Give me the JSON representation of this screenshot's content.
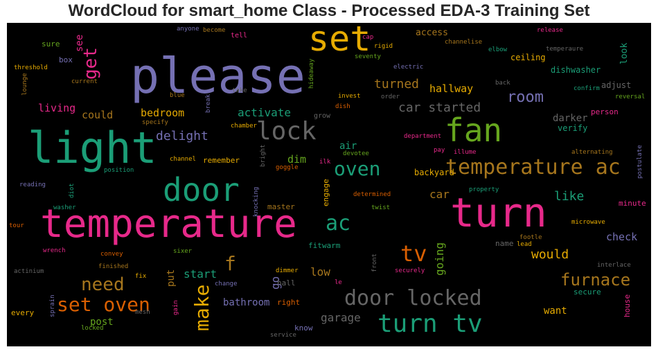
{
  "chart_data": {
    "type": "wordcloud",
    "title": "WordCloud for smart_home Class - Processed EDA-3 Training Set",
    "background": "#000000",
    "colormap": "Dark2",
    "words": [
      {
        "text": "please",
        "size": 70,
        "color": "#7570b3"
      },
      {
        "text": "light",
        "size": 62,
        "color": "#1b9e77"
      },
      {
        "text": "temperature",
        "size": 56,
        "color": "#e7298a"
      },
      {
        "text": "turn",
        "size": 58,
        "color": "#e7298a"
      },
      {
        "text": "set",
        "size": 50,
        "color": "#e6ab02"
      },
      {
        "text": "fan",
        "size": 46,
        "color": "#66a61e"
      },
      {
        "text": "door",
        "size": 46,
        "color": "#1b9e77"
      },
      {
        "text": "lock",
        "size": 36,
        "color": "#666666"
      },
      {
        "text": "temperature ac",
        "size": 30,
        "color": "#a6761d"
      },
      {
        "text": "turn tv",
        "size": 36,
        "color": "#1b9e77"
      },
      {
        "text": "door locked",
        "size": 30,
        "color": "#666666"
      },
      {
        "text": "set oven",
        "size": 28,
        "color": "#d95f02"
      },
      {
        "text": "oven",
        "size": 28,
        "color": "#1b9e77"
      },
      {
        "text": "ac",
        "size": 30,
        "color": "#1b9e77"
      },
      {
        "text": "tv",
        "size": 32,
        "color": "#d95f02"
      },
      {
        "text": "need",
        "size": 26,
        "color": "#a6761d"
      },
      {
        "text": "make",
        "size": 28,
        "color": "#e6ab02"
      },
      {
        "text": "furnace",
        "size": 24,
        "color": "#a6761d"
      },
      {
        "text": "get",
        "size": 26,
        "color": "#e7298a"
      },
      {
        "text": "room",
        "size": 22,
        "color": "#7570b3"
      },
      {
        "text": "f",
        "size": 28,
        "color": "#a6761d"
      },
      {
        "text": "like",
        "size": 18,
        "color": "#1b9e77"
      },
      {
        "text": "would",
        "size": 18,
        "color": "#e6ab02"
      },
      {
        "text": "turned",
        "size": 18,
        "color": "#a6761d"
      },
      {
        "text": "delight",
        "size": 18,
        "color": "#7570b3"
      },
      {
        "text": "car started",
        "size": 18,
        "color": "#666666"
      },
      {
        "text": "activate",
        "size": 16,
        "color": "#1b9e77"
      },
      {
        "text": "bedroom",
        "size": 15,
        "color": "#e6ab02"
      },
      {
        "text": "car",
        "size": 16,
        "color": "#a6761d"
      },
      {
        "text": "start",
        "size": 16,
        "color": "#1b9e77"
      },
      {
        "text": "going",
        "size": 16,
        "color": "#66a61e"
      },
      {
        "text": "low",
        "size": 16,
        "color": "#a6761d"
      },
      {
        "text": "check",
        "size": 15,
        "color": "#7570b3"
      },
      {
        "text": "garage",
        "size": 16,
        "color": "#666666"
      },
      {
        "text": "could",
        "size": 15,
        "color": "#a6761d"
      },
      {
        "text": "living",
        "size": 15,
        "color": "#e7298a"
      },
      {
        "text": "hallway",
        "size": 15,
        "color": "#e6ab02"
      },
      {
        "text": "bathroom",
        "size": 14,
        "color": "#7570b3"
      },
      {
        "text": "post",
        "size": 14,
        "color": "#66a61e"
      },
      {
        "text": "darker",
        "size": 14,
        "color": "#666666"
      },
      {
        "text": "dim",
        "size": 15,
        "color": "#66a61e"
      },
      {
        "text": "air",
        "size": 14,
        "color": "#1b9e77"
      },
      {
        "text": "put",
        "size": 14,
        "color": "#a6761d"
      },
      {
        "text": "go",
        "size": 16,
        "color": "#7570b3"
      },
      {
        "text": "want",
        "size": 14,
        "color": "#e6ab02"
      },
      {
        "text": "see",
        "size": 14,
        "color": "#e7298a"
      },
      {
        "text": "access",
        "size": 13,
        "color": "#a6761d"
      },
      {
        "text": "ceiling",
        "size": 12,
        "color": "#e6ab02"
      },
      {
        "text": "look",
        "size": 13,
        "color": "#1b9e77"
      },
      {
        "text": "dishwasher",
        "size": 12,
        "color": "#1b9e77"
      },
      {
        "text": "adjust",
        "size": 12,
        "color": "#666666"
      },
      {
        "text": "verify",
        "size": 12,
        "color": "#1b9e77"
      },
      {
        "text": "person",
        "size": 11,
        "color": "#e7298a"
      },
      {
        "text": "backyard",
        "size": 12,
        "color": "#e6ab02"
      },
      {
        "text": "remember",
        "size": 11,
        "color": "#e6ab02"
      },
      {
        "text": "engage",
        "size": 11,
        "color": "#e6ab02"
      },
      {
        "text": "master",
        "size": 11,
        "color": "#a6761d"
      },
      {
        "text": "right",
        "size": 11,
        "color": "#d95f02"
      },
      {
        "text": "hall",
        "size": 11,
        "color": "#666666"
      },
      {
        "text": "know",
        "size": 11,
        "color": "#7570b3"
      },
      {
        "text": "fitwarm",
        "size": 11,
        "color": "#1b9e77"
      },
      {
        "text": "name",
        "size": 11,
        "color": "#666666"
      },
      {
        "text": "lead",
        "size": 9,
        "color": "#e6ab02"
      },
      {
        "text": "minute",
        "size": 11,
        "color": "#e7298a"
      },
      {
        "text": "secure",
        "size": 11,
        "color": "#1b9e77"
      },
      {
        "text": "house",
        "size": 11,
        "color": "#e7298a"
      },
      {
        "text": "box",
        "size": 11,
        "color": "#7570b3"
      },
      {
        "text": "sure",
        "size": 11,
        "color": "#66a61e"
      },
      {
        "text": "every",
        "size": 11,
        "color": "#e6ab02"
      },
      {
        "text": "grow",
        "size": 10,
        "color": "#666666"
      },
      {
        "text": "invest",
        "size": 9,
        "color": "#e6ab02"
      },
      {
        "text": "dish",
        "size": 9,
        "color": "#d95f02"
      },
      {
        "text": "tell",
        "size": 10,
        "color": "#e7298a"
      },
      {
        "text": "rigid",
        "size": 9,
        "color": "#e6ab02"
      },
      {
        "text": "electric",
        "size": 9,
        "color": "#7570b3"
      },
      {
        "text": "elbow",
        "size": 9,
        "color": "#1b9e77"
      },
      {
        "text": "channelise",
        "size": 9,
        "color": "#a6761d"
      },
      {
        "text": "temperaure",
        "size": 9,
        "color": "#666666"
      },
      {
        "text": "release",
        "size": 9,
        "color": "#e7298a"
      },
      {
        "text": "cap",
        "size": 9,
        "color": "#e7298a"
      },
      {
        "text": "seventy",
        "size": 9,
        "color": "#66a61e"
      },
      {
        "text": "hideaway",
        "size": 9,
        "color": "#66a61e"
      },
      {
        "text": "current",
        "size": 9,
        "color": "#a6761d"
      },
      {
        "text": "threshold",
        "size": 9,
        "color": "#e6ab02"
      },
      {
        "text": "lounge",
        "size": 9,
        "color": "#a6761d"
      },
      {
        "text": "anyone",
        "size": 9,
        "color": "#7570b3"
      },
      {
        "text": "become",
        "size": 9,
        "color": "#a6761d"
      },
      {
        "text": "blue",
        "size": 9,
        "color": "#a6761d"
      },
      {
        "text": "take",
        "size": 9,
        "color": "#666666"
      },
      {
        "text": "break",
        "size": 9,
        "color": "#7570b3"
      },
      {
        "text": "specify",
        "size": 9,
        "color": "#a6761d"
      },
      {
        "text": "chamber",
        "size": 9,
        "color": "#e6ab02"
      },
      {
        "text": "order",
        "size": 9,
        "color": "#666666"
      },
      {
        "text": "back",
        "size": 9,
        "color": "#666666"
      },
      {
        "text": "confirm",
        "size": 9,
        "color": "#1b9e77"
      },
      {
        "text": "reversal",
        "size": 9,
        "color": "#66a61e"
      },
      {
        "text": "department",
        "size": 9,
        "color": "#e7298a"
      },
      {
        "text": "devotee",
        "size": 9,
        "color": "#66a61e"
      },
      {
        "text": "pay",
        "size": 9,
        "color": "#e7298a"
      },
      {
        "text": "illume",
        "size": 9,
        "color": "#e7298a"
      },
      {
        "text": "alternating",
        "size": 9,
        "color": "#a6761d"
      },
      {
        "text": "postulate",
        "size": 9,
        "color": "#7570b3"
      },
      {
        "text": "channel",
        "size": 9,
        "color": "#e6ab02"
      },
      {
        "text": "bright",
        "size": 9,
        "color": "#666666"
      },
      {
        "text": "goggle",
        "size": 9,
        "color": "#d95f02"
      },
      {
        "text": "ilk",
        "size": 9,
        "color": "#e7298a"
      },
      {
        "text": "mesh",
        "size": 9,
        "color": "#666666"
      },
      {
        "text": "position",
        "size": 9,
        "color": "#1b9e77"
      },
      {
        "text": "reading",
        "size": 9,
        "color": "#7570b3"
      },
      {
        "text": "diot",
        "size": 9,
        "color": "#1b9e77"
      },
      {
        "text": "washer",
        "size": 9,
        "color": "#1b9e77"
      },
      {
        "text": "knocking",
        "size": 9,
        "color": "#7570b3"
      },
      {
        "text": "determined",
        "size": 9,
        "color": "#d95f02"
      },
      {
        "text": "twist",
        "size": 9,
        "color": "#66a61e"
      },
      {
        "text": "property",
        "size": 9,
        "color": "#1b9e77"
      },
      {
        "text": "tour",
        "size": 9,
        "color": "#d95f02"
      },
      {
        "text": "microwave",
        "size": 9,
        "color": "#e6ab02"
      },
      {
        "text": "footle",
        "size": 9,
        "color": "#a6761d"
      },
      {
        "text": "wrench",
        "size": 9,
        "color": "#e7298a"
      },
      {
        "text": "convey",
        "size": 9,
        "color": "#d95f02"
      },
      {
        "text": "sixer",
        "size": 9,
        "color": "#66a61e"
      },
      {
        "text": "actinium",
        "size": 9,
        "color": "#666666"
      },
      {
        "text": "finished",
        "size": 9,
        "color": "#a6761d"
      },
      {
        "text": "fix",
        "size": 9,
        "color": "#e6ab02"
      },
      {
        "text": "change",
        "size": 9,
        "color": "#7570b3"
      },
      {
        "text": "dimmer",
        "size": 9,
        "color": "#e6ab02"
      },
      {
        "text": "securely",
        "size": 9,
        "color": "#e7298a"
      },
      {
        "text": "front",
        "size": 9,
        "color": "#666666"
      },
      {
        "text": "le",
        "size": 9,
        "color": "#e7298a"
      },
      {
        "text": "interlace",
        "size": 9,
        "color": "#666666"
      },
      {
        "text": "gain",
        "size": 9,
        "color": "#e7298a"
      },
      {
        "text": "sprain",
        "size": 9,
        "color": "#7570b3"
      },
      {
        "text": "locked",
        "size": 9,
        "color": "#66a61e"
      },
      {
        "text": "service",
        "size": 9,
        "color": "#666666"
      }
    ]
  }
}
